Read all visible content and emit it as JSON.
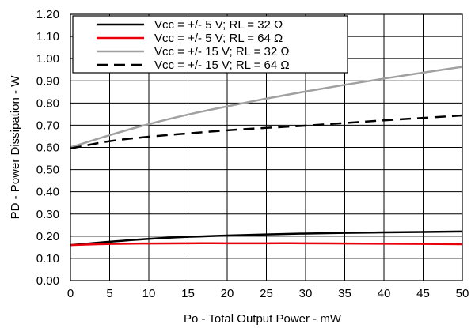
{
  "chart_data": {
    "type": "line",
    "title": "",
    "xlabel": "Po - Total Output Power - mW",
    "ylabel": "PD - Power Dissipation - W",
    "xlim": [
      0,
      50
    ],
    "ylim": [
      0,
      1.2
    ],
    "x_ticks": [
      0,
      5,
      10,
      15,
      20,
      25,
      30,
      35,
      40,
      45,
      50
    ],
    "x_tick_labels": [
      "0",
      "5",
      "10",
      "15",
      "20",
      "25",
      "30",
      "35",
      "40",
      "45",
      "50"
    ],
    "y_ticks": [
      0,
      0.1,
      0.2,
      0.3,
      0.4,
      0.5,
      0.6,
      0.7,
      0.8,
      0.9,
      1.0,
      1.1,
      1.2
    ],
    "y_tick_labels": [
      "0.00",
      "0.10",
      "0.20",
      "0.30",
      "0.40",
      "0.50",
      "0.60",
      "0.70",
      "0.80",
      "0.90",
      "1.00",
      "1.10",
      "1.20"
    ],
    "grid": true,
    "legend_position": "top-left",
    "x": [
      0,
      5,
      10,
      15,
      20,
      25,
      30,
      35,
      40,
      45,
      50
    ],
    "series": [
      {
        "name": "Vcc = +/- 5 V; RL = 32 Ω",
        "color": "#000000",
        "dash": "solid",
        "values": [
          0.16,
          0.175,
          0.188,
          0.197,
          0.203,
          0.208,
          0.212,
          0.215,
          0.217,
          0.219,
          0.221
        ]
      },
      {
        "name": "Vcc = +/- 5 V; RL = 64 Ω",
        "color": "#e8000b",
        "dash": "solid",
        "values": [
          0.16,
          0.165,
          0.167,
          0.168,
          0.168,
          0.168,
          0.168,
          0.167,
          0.166,
          0.165,
          0.164
        ]
      },
      {
        "name": "Vcc = +/- 15 V; RL = 32 Ω",
        "color": "#a0a0a0",
        "dash": "solid",
        "values": [
          0.6,
          0.655,
          0.705,
          0.748,
          0.785,
          0.82,
          0.852,
          0.882,
          0.91,
          0.937,
          0.963
        ]
      },
      {
        "name": "Vcc = +/- 15 V; RL = 64 Ω",
        "color": "#000000",
        "dash": "dashed",
        "values": [
          0.595,
          0.628,
          0.648,
          0.663,
          0.677,
          0.688,
          0.698,
          0.71,
          0.722,
          0.733,
          0.744
        ]
      }
    ]
  }
}
